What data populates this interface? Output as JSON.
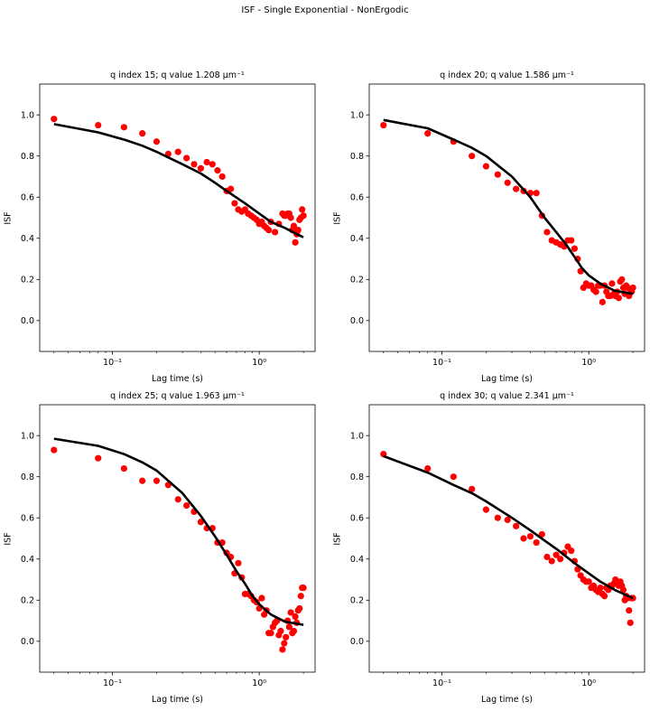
{
  "suptitle": "ISF - Single Exponential - NonErgodic",
  "colors": {
    "data_points": "#ff0000",
    "fit_line": "#000000"
  },
  "chart_data": [
    {
      "type": "scatter",
      "title": "q index 15; q value 1.208 μm⁻¹",
      "xlabel": "Lag time (s)",
      "ylabel": "ISF",
      "xscale": "log",
      "xlim": [
        0.032,
        2.4
      ],
      "ylim": [
        -0.15,
        1.15
      ],
      "yticks": [
        "0.0",
        "0.2",
        "0.4",
        "0.6",
        "0.8",
        "1.0"
      ],
      "xticks": [
        "10⁻¹",
        "10⁰"
      ],
      "series": [
        {
          "kind": "points",
          "x": [
            0.04,
            0.08,
            0.12,
            0.16,
            0.2,
            0.24,
            0.28,
            0.32,
            0.36,
            0.4,
            0.44,
            0.48,
            0.52,
            0.56,
            0.6,
            0.64,
            0.68,
            0.72,
            0.76,
            0.8,
            0.84,
            0.88,
            0.92,
            0.96,
            1.0,
            1.04,
            1.08,
            1.12,
            1.16,
            1.2,
            1.28,
            1.36,
            1.44,
            1.48,
            1.52,
            1.56,
            1.6,
            1.64,
            1.68,
            1.72,
            1.76,
            1.8,
            1.84,
            1.88,
            1.92,
            1.96,
            2.0
          ],
          "y": [
            0.98,
            0.95,
            0.94,
            0.91,
            0.87,
            0.81,
            0.82,
            0.79,
            0.76,
            0.74,
            0.77,
            0.76,
            0.73,
            0.7,
            0.63,
            0.64,
            0.57,
            0.54,
            0.53,
            0.54,
            0.52,
            0.51,
            0.5,
            0.49,
            0.47,
            0.48,
            0.46,
            0.45,
            0.44,
            0.48,
            0.43,
            0.47,
            0.52,
            0.51,
            0.51,
            0.52,
            0.52,
            0.5,
            0.44,
            0.46,
            0.38,
            0.42,
            0.44,
            0.49,
            0.5,
            0.54,
            0.51
          ]
        },
        {
          "kind": "line",
          "x": [
            0.04,
            0.08,
            0.12,
            0.16,
            0.2,
            0.3,
            0.4,
            0.5,
            0.6,
            0.8,
            1.0,
            1.2,
            1.5,
            1.8,
            2.0
          ],
          "y": [
            0.955,
            0.915,
            0.88,
            0.85,
            0.82,
            0.76,
            0.715,
            0.67,
            0.63,
            0.57,
            0.52,
            0.48,
            0.45,
            0.42,
            0.405
          ]
        }
      ]
    },
    {
      "type": "scatter",
      "title": "q index 20; q value 1.586 μm⁻¹",
      "xlabel": "Lag time (s)",
      "ylabel": "ISF",
      "xscale": "log",
      "xlim": [
        0.032,
        2.4
      ],
      "ylim": [
        -0.15,
        1.15
      ],
      "yticks": [
        "0.0",
        "0.2",
        "0.4",
        "0.6",
        "0.8",
        "1.0"
      ],
      "xticks": [
        "10⁻¹",
        "10⁰"
      ],
      "series": [
        {
          "kind": "points",
          "x": [
            0.04,
            0.08,
            0.12,
            0.16,
            0.2,
            0.24,
            0.28,
            0.32,
            0.36,
            0.4,
            0.44,
            0.48,
            0.52,
            0.56,
            0.6,
            0.64,
            0.68,
            0.72,
            0.76,
            0.8,
            0.84,
            0.88,
            0.92,
            0.96,
            1.0,
            1.04,
            1.08,
            1.12,
            1.16,
            1.2,
            1.24,
            1.28,
            1.32,
            1.36,
            1.4,
            1.44,
            1.48,
            1.52,
            1.56,
            1.6,
            1.64,
            1.68,
            1.72,
            1.76,
            1.8,
            1.84,
            1.88,
            1.92,
            1.96,
            2.0
          ],
          "y": [
            0.95,
            0.91,
            0.87,
            0.8,
            0.75,
            0.71,
            0.67,
            0.64,
            0.63,
            0.62,
            0.62,
            0.51,
            0.43,
            0.39,
            0.38,
            0.37,
            0.36,
            0.39,
            0.39,
            0.35,
            0.3,
            0.24,
            0.16,
            0.18,
            0.17,
            0.17,
            0.15,
            0.14,
            0.17,
            0.17,
            0.09,
            0.17,
            0.14,
            0.12,
            0.12,
            0.18,
            0.13,
            0.12,
            0.14,
            0.11,
            0.19,
            0.2,
            0.16,
            0.13,
            0.17,
            0.16,
            0.12,
            0.15,
            0.14,
            0.16
          ]
        },
        {
          "kind": "line",
          "x": [
            0.04,
            0.08,
            0.12,
            0.16,
            0.2,
            0.3,
            0.4,
            0.5,
            0.6,
            0.7,
            0.8,
            0.9,
            1.0,
            1.2,
            1.5,
            2.0
          ],
          "y": [
            0.975,
            0.935,
            0.88,
            0.84,
            0.8,
            0.7,
            0.6,
            0.5,
            0.43,
            0.37,
            0.31,
            0.255,
            0.22,
            0.18,
            0.145,
            0.13
          ]
        }
      ]
    },
    {
      "type": "scatter",
      "title": "q index 25; q value 1.963 μm⁻¹",
      "xlabel": "Lag time (s)",
      "ylabel": "ISF",
      "xscale": "log",
      "xlim": [
        0.032,
        2.4
      ],
      "ylim": [
        -0.15,
        1.15
      ],
      "yticks": [
        "0.0",
        "0.2",
        "0.4",
        "0.6",
        "0.8",
        "1.0"
      ],
      "xticks": [
        "10⁻¹",
        "10⁰"
      ],
      "series": [
        {
          "kind": "points",
          "x": [
            0.04,
            0.08,
            0.12,
            0.16,
            0.2,
            0.24,
            0.28,
            0.32,
            0.36,
            0.4,
            0.44,
            0.48,
            0.52,
            0.56,
            0.6,
            0.64,
            0.68,
            0.72,
            0.76,
            0.8,
            0.84,
            0.88,
            0.92,
            0.96,
            1.0,
            1.04,
            1.08,
            1.12,
            1.16,
            1.2,
            1.24,
            1.28,
            1.32,
            1.36,
            1.4,
            1.44,
            1.48,
            1.52,
            1.56,
            1.6,
            1.64,
            1.68,
            1.72,
            1.76,
            1.8,
            1.84,
            1.88,
            1.92,
            1.96,
            2.0
          ],
          "y": [
            0.93,
            0.89,
            0.84,
            0.78,
            0.78,
            0.76,
            0.69,
            0.66,
            0.63,
            0.58,
            0.55,
            0.55,
            0.48,
            0.48,
            0.43,
            0.41,
            0.33,
            0.38,
            0.31,
            0.23,
            0.23,
            0.22,
            0.2,
            0.19,
            0.16,
            0.21,
            0.13,
            0.15,
            0.04,
            0.04,
            0.07,
            0.09,
            0.1,
            0.03,
            0.05,
            -0.04,
            -0.01,
            0.02,
            0.1,
            0.07,
            0.14,
            0.04,
            0.05,
            0.12,
            0.09,
            0.15,
            0.16,
            0.22,
            0.26,
            0.26
          ]
        },
        {
          "kind": "line",
          "x": [
            0.04,
            0.08,
            0.12,
            0.16,
            0.2,
            0.3,
            0.4,
            0.5,
            0.6,
            0.7,
            0.8,
            0.9,
            1.0,
            1.2,
            1.5,
            2.0
          ],
          "y": [
            0.985,
            0.95,
            0.91,
            0.87,
            0.83,
            0.72,
            0.61,
            0.51,
            0.42,
            0.34,
            0.28,
            0.22,
            0.18,
            0.13,
            0.095,
            0.08
          ]
        }
      ]
    },
    {
      "type": "scatter",
      "title": "q index 30; q value 2.341 μm⁻¹",
      "xlabel": "Lag time (s)",
      "ylabel": "ISF",
      "xscale": "log",
      "xlim": [
        0.032,
        2.4
      ],
      "ylim": [
        -0.15,
        1.15
      ],
      "yticks": [
        "0.0",
        "0.2",
        "0.4",
        "0.6",
        "0.8",
        "1.0"
      ],
      "xticks": [
        "10⁻¹",
        "10⁰"
      ],
      "series": [
        {
          "kind": "points",
          "x": [
            0.04,
            0.08,
            0.12,
            0.16,
            0.2,
            0.24,
            0.28,
            0.32,
            0.36,
            0.4,
            0.44,
            0.48,
            0.52,
            0.56,
            0.6,
            0.64,
            0.68,
            0.72,
            0.76,
            0.8,
            0.84,
            0.88,
            0.92,
            0.96,
            1.0,
            1.04,
            1.08,
            1.12,
            1.16,
            1.2,
            1.24,
            1.28,
            1.32,
            1.36,
            1.4,
            1.44,
            1.48,
            1.52,
            1.56,
            1.6,
            1.64,
            1.68,
            1.72,
            1.76,
            1.8,
            1.84,
            1.88,
            1.92,
            1.96,
            2.0
          ],
          "y": [
            0.91,
            0.84,
            0.8,
            0.74,
            0.64,
            0.6,
            0.59,
            0.56,
            0.5,
            0.51,
            0.48,
            0.52,
            0.41,
            0.39,
            0.42,
            0.4,
            0.43,
            0.46,
            0.44,
            0.39,
            0.35,
            0.32,
            0.3,
            0.29,
            0.29,
            0.26,
            0.27,
            0.25,
            0.24,
            0.26,
            0.23,
            0.22,
            0.26,
            0.25,
            0.27,
            0.27,
            0.28,
            0.3,
            0.28,
            0.27,
            0.29,
            0.27,
            0.25,
            0.2,
            0.22,
            0.21,
            0.15,
            0.09,
            0.21,
            0.21
          ]
        },
        {
          "kind": "line",
          "x": [
            0.04,
            0.08,
            0.12,
            0.16,
            0.2,
            0.3,
            0.4,
            0.5,
            0.6,
            0.8,
            1.0,
            1.2,
            1.5,
            2.0
          ],
          "y": [
            0.9,
            0.82,
            0.76,
            0.72,
            0.68,
            0.6,
            0.54,
            0.49,
            0.45,
            0.38,
            0.33,
            0.29,
            0.25,
            0.21
          ]
        }
      ]
    }
  ]
}
